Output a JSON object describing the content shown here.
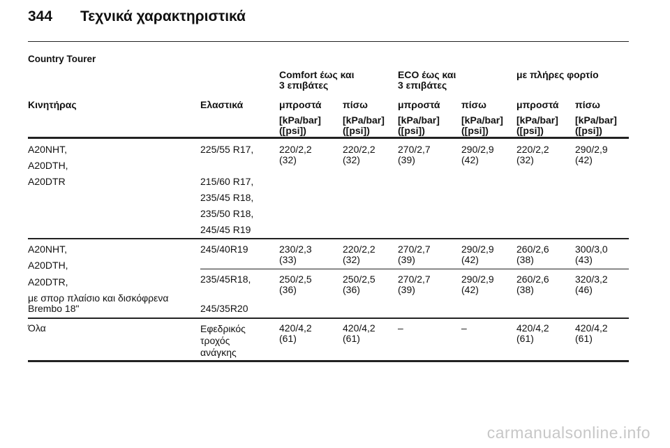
{
  "page": {
    "number": "344",
    "title": "Τεχνικά χαρακτηριστικά"
  },
  "section": "Country Tourer",
  "table": {
    "group_headers": [
      "Comfort έως και\n3 επιβάτες",
      "ECO έως και\n3 επιβάτες",
      "με πλήρες φορτίο"
    ],
    "columns": [
      "Κινητήρας",
      "Ελαστικά",
      "μπροστά",
      "πίσω",
      "μπροστά",
      "πίσω",
      "μπροστά",
      "πίσω"
    ],
    "unit": "[kPa/bar]\n([psi])",
    "rows": [
      {
        "engine": [
          "A20NHT,",
          "A20DTH,",
          "A20DTR"
        ],
        "tyres": [
          "225/55 R17,",
          "215/60 R17,",
          "235/45 R18,",
          "235/50 R18,",
          "245/45 R19"
        ],
        "pressures": [
          "220/2,2\n(32)",
          "220/2,2\n(32)",
          "270/2,7\n(39)",
          "290/2,9\n(42)",
          "220/2,2\n(32)",
          "290/2,9\n(42)"
        ]
      },
      {
        "engine": [
          "A20NHT,",
          "A20DTH,",
          "A20DTR,",
          "με σπορ πλαίσιο και δισκόφρενα\nBrembo 18\""
        ],
        "sub_rows": [
          {
            "tyres": "245/40R19",
            "pressures": [
              "230/2,3\n(33)",
              "220/2,2\n(32)",
              "270/2,7\n(39)",
              "290/2,9\n(42)",
              "260/2,6\n(38)",
              "300/3,0\n(43)"
            ]
          },
          {
            "tyres": [
              "235/45R18,",
              "245/35R20"
            ],
            "pressures": [
              "250/2,5\n(36)",
              "250/2,5\n(36)",
              "270/2,7\n(39)",
              "290/2,9\n(42)",
              "260/2,6\n(38)",
              "320/3,2\n(46)"
            ]
          }
        ]
      },
      {
        "engine": "Όλα",
        "tyres": "Εφεδρικός\nτροχός\nανάγκης",
        "pressures": [
          "420/4,2\n(61)",
          "420/4,2\n(61)",
          "–",
          "–",
          "420/4,2\n(61)",
          "420/4,2\n(61)"
        ]
      }
    ]
  },
  "watermark": "carmanualsonline.info"
}
